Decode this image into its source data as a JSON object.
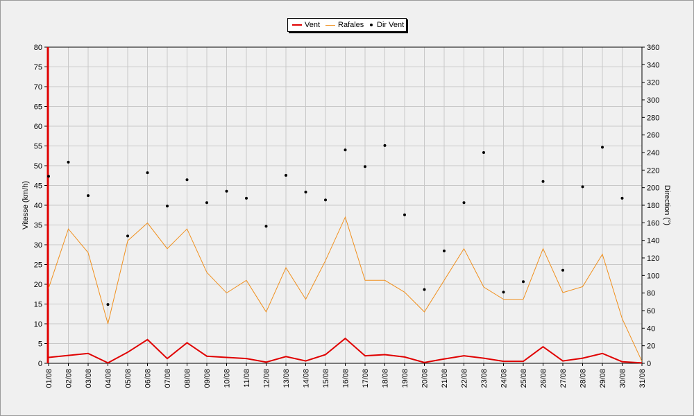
{
  "legend": {
    "vent": "Vent",
    "rafales": "Rafales",
    "dir": "Dir Vent"
  },
  "colors": {
    "vent": "#e00000",
    "rafales": "#f0901e",
    "dir": "#000000",
    "grid": "#c8c8c8",
    "plot_bg": "#f0f0f0"
  },
  "chart_data": {
    "type": "line",
    "categories": [
      "01/08",
      "02/08",
      "03/08",
      "04/08",
      "05/08",
      "06/08",
      "07/08",
      "08/08",
      "09/08",
      "10/08",
      "11/08",
      "12/08",
      "13/08",
      "14/08",
      "15/08",
      "16/08",
      "17/08",
      "18/08",
      "19/08",
      "20/08",
      "21/08",
      "22/08",
      "23/08",
      "24/08",
      "25/08",
      "26/08",
      "27/08",
      "28/08",
      "29/08",
      "30/08",
      "31/08"
    ],
    "ylabel": "Vitesse (km/h)",
    "ylim": [
      0,
      80
    ],
    "yticks": [
      0,
      5,
      10,
      15,
      20,
      25,
      30,
      35,
      40,
      45,
      50,
      55,
      60,
      65,
      70,
      75,
      80
    ],
    "y2label": "Direction (°)",
    "y2lim": [
      0,
      360
    ],
    "y2ticks": [
      0,
      20,
      40,
      60,
      80,
      100,
      120,
      140,
      160,
      180,
      200,
      220,
      240,
      260,
      280,
      300,
      320,
      340,
      360
    ],
    "grid": true,
    "legend_position": "top-center",
    "series": [
      {
        "name": "Vent",
        "axis": "left",
        "kind": "line",
        "values": [
          1.5,
          2.0,
          2.5,
          0.1,
          2.8,
          6.0,
          1.2,
          5.2,
          1.8,
          1.5,
          1.2,
          0.3,
          1.7,
          0.6,
          2.2,
          6.3,
          1.9,
          2.2,
          1.6,
          0.2,
          1.1,
          1.9,
          1.3,
          0.5,
          0.5,
          4.2,
          0.6,
          1.3,
          2.5,
          0.4,
          0.1
        ]
      },
      {
        "name": "Rafales",
        "axis": "left",
        "kind": "line",
        "values": [
          19,
          34,
          28,
          10,
          31,
          35.5,
          29,
          34,
          23,
          17.8,
          21,
          13,
          24.2,
          16.2,
          26,
          37,
          21,
          21,
          18,
          13,
          21,
          29,
          19.3,
          16.2,
          16.2,
          29,
          17.9,
          19.4,
          27.6,
          11.3,
          0.5
        ]
      },
      {
        "name": "Dir Vent",
        "axis": "right",
        "kind": "scatter",
        "values": [
          213,
          229,
          191,
          67,
          145,
          217,
          179,
          209,
          183,
          196,
          188,
          156,
          214,
          195,
          186,
          243,
          224,
          248,
          169,
          84,
          128,
          183,
          240,
          81,
          93,
          207,
          106,
          201,
          246,
          188,
          null
        ]
      }
    ]
  }
}
